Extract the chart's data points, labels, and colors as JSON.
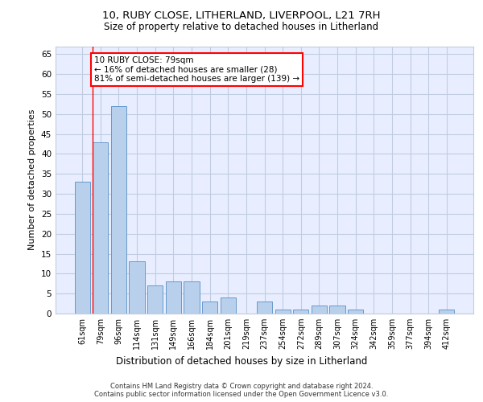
{
  "title1": "10, RUBY CLOSE, LITHERLAND, LIVERPOOL, L21 7RH",
  "title2": "Size of property relative to detached houses in Litherland",
  "xlabel": "Distribution of detached houses by size in Litherland",
  "ylabel": "Number of detached properties",
  "categories": [
    "61sqm",
    "79sqm",
    "96sqm",
    "114sqm",
    "131sqm",
    "149sqm",
    "166sqm",
    "184sqm",
    "201sqm",
    "219sqm",
    "237sqm",
    "254sqm",
    "272sqm",
    "289sqm",
    "307sqm",
    "324sqm",
    "342sqm",
    "359sqm",
    "377sqm",
    "394sqm",
    "412sqm"
  ],
  "values": [
    33,
    43,
    52,
    13,
    7,
    8,
    8,
    3,
    4,
    0,
    3,
    1,
    1,
    2,
    2,
    1,
    0,
    0,
    0,
    0,
    1
  ],
  "bar_color": "#b8d0ec",
  "bar_edge_color": "#6699cc",
  "annotation_box_text": "10 RUBY CLOSE: 79sqm\n← 16% of detached houses are smaller (28)\n81% of semi-detached houses are larger (139) →",
  "annotation_box_color": "white",
  "annotation_box_edge_color": "red",
  "vline_color": "red",
  "vline_x_index": 1,
  "ylim": [
    0,
    67
  ],
  "yticks": [
    0,
    5,
    10,
    15,
    20,
    25,
    30,
    35,
    40,
    45,
    50,
    55,
    60,
    65
  ],
  "footer_line1": "Contains HM Land Registry data © Crown copyright and database right 2024.",
  "footer_line2": "Contains public sector information licensed under the Open Government Licence v3.0.",
  "bg_color": "#e8eeff",
  "grid_color": "#c0cce0"
}
